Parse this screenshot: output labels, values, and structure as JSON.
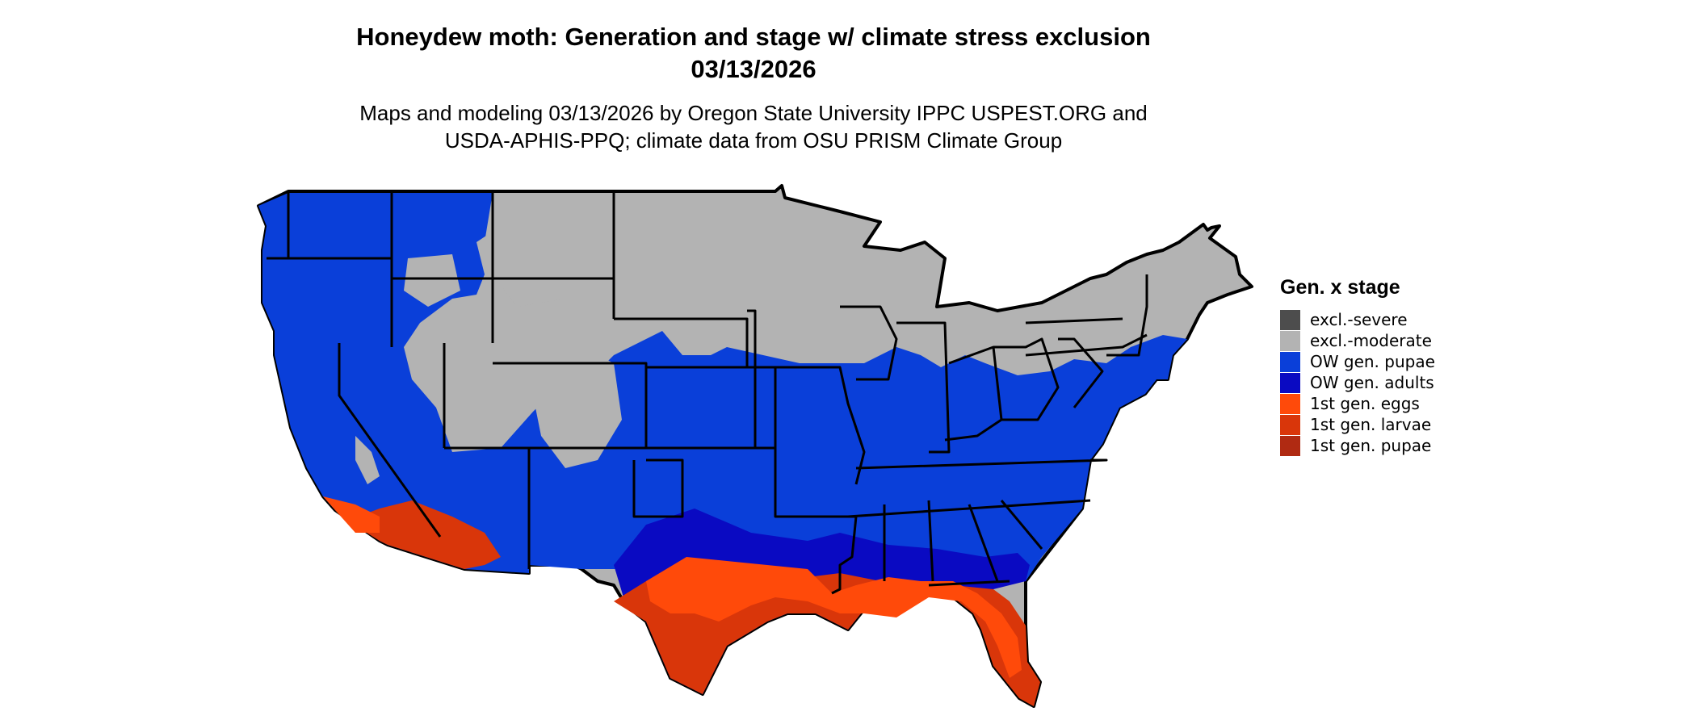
{
  "title": {
    "line1": "Honeydew moth: Generation and stage w/ climate stress exclusion",
    "line2": "03/13/2026"
  },
  "subtitle": {
    "line1": "Maps and modeling 03/13/2026 by Oregon State University IPPC USPEST.ORG and",
    "line2": "USDA-APHIS-PPQ; climate data from OSU PRISM Climate Group"
  },
  "legend": {
    "title": "Gen. x stage",
    "items": [
      {
        "label": "excl.-severe",
        "color": "#4d4d4d"
      },
      {
        "label": "excl.-moderate",
        "color": "#b3b3b3"
      },
      {
        "label": "OW gen. pupae",
        "color": "#0a3fd9"
      },
      {
        "label": "OW gen. adults",
        "color": "#0a0ac2"
      },
      {
        "label": "1st gen. eggs",
        "color": "#ff4a0a"
      },
      {
        "label": "1st gen. larvae",
        "color": "#d9360a"
      },
      {
        "label": "1st gen. pupae",
        "color": "#b02a12"
      }
    ]
  }
}
